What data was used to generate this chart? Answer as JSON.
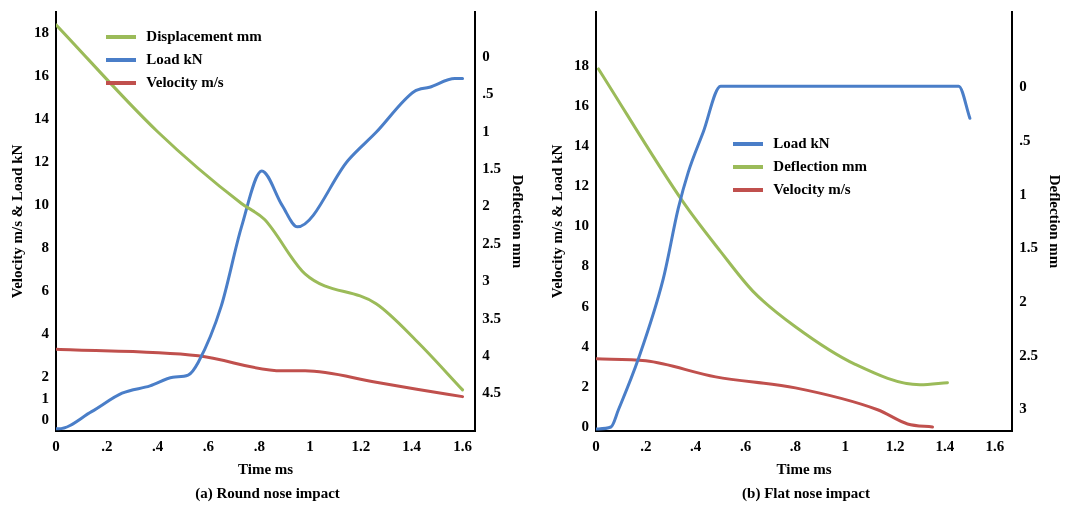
{
  "chart_data": [
    {
      "type": "line",
      "title": "(a) Round nose impact",
      "xlabel": "Time ms",
      "ylabel": "Velocity m/s & Load kN",
      "y2label": "Deflection mm",
      "xlim": [
        0,
        1.65
      ],
      "xticks": [
        0,
        {
          "value": 0.2,
          "label": ".2"
        },
        {
          "value": 0.4,
          "label": ".4"
        },
        {
          "value": 0.6,
          "label": ".6"
        },
        {
          "value": 0.8,
          "label": ".8"
        },
        1,
        1.2,
        1.4,
        1.6
      ],
      "ylim": [
        -0.5,
        19
      ],
      "yticks": [
        0,
        1,
        2,
        4,
        6,
        8,
        10,
        12,
        14,
        16,
        18
      ],
      "y2lim": [
        5,
        -0.6
      ],
      "y2ticks": [
        0,
        {
          "value": 0.5,
          "label": ".5"
        },
        1,
        1.5,
        2,
        2.5,
        3,
        3.5,
        4,
        4.5
      ],
      "legend": "top",
      "marker": "none",
      "grid": false,
      "series": [
        {
          "name": "Displacement mm",
          "color": "#9bbb59",
          "axis": "y2",
          "x": [
            0,
            0.4,
            0.73,
            0.82,
            0.98,
            1.26,
            1.42,
            1.6
          ],
          "values": [
            -0.43,
            1.0,
            1.96,
            2.17,
            2.9,
            3.3,
            3.8,
            4.45
          ]
        },
        {
          "name": "Load kN",
          "color": "#4a7ec8",
          "x": [
            0,
            0.01,
            0.14,
            0.26,
            0.37,
            0.46,
            0.52,
            0.56,
            0.65,
            0.73,
            0.81,
            0.89,
            0.95,
            1.15,
            1.26,
            1.41,
            1.47,
            1.57,
            1.6
          ],
          "values": [
            -0.4,
            -0.4,
            0.4,
            1.26,
            1.6,
            2.0,
            2.1,
            2.7,
            5.3,
            9.0,
            11.6,
            10.0,
            9.0,
            12.1,
            13.4,
            15.3,
            15.5,
            15.9,
            15.9
          ]
        },
        {
          "name": "Velocity m/s",
          "color": "#c0504d",
          "x": [
            0,
            0.56,
            0.89,
            0.98,
            1.26,
            1.42,
            1.6
          ],
          "values": [
            3.3,
            3.0,
            2.3,
            2.3,
            1.77,
            1.44,
            1.1
          ]
        }
      ]
    },
    {
      "type": "line",
      "title": "(b) Flat nose impact",
      "xlabel": "Time ms",
      "ylabel": "Velocity m/s & Load kN",
      "y2label": "Deflection mm",
      "xlim": [
        0,
        1.67
      ],
      "xticks": [
        0,
        {
          "value": 0.2,
          "label": ".2"
        },
        {
          "value": 0.4,
          "label": ".4"
        },
        {
          "value": 0.6,
          "label": ".6"
        },
        {
          "value": 0.8,
          "label": ".8"
        },
        1,
        1.2,
        1.4,
        1.6
      ],
      "ylim": [
        -0.2,
        20.7
      ],
      "yticks": [
        0,
        2,
        4,
        6,
        8,
        10,
        12,
        14,
        16,
        18
      ],
      "y2lim": [
        3.2,
        -0.7
      ],
      "y2ticks": [
        0,
        {
          "value": 0.5,
          "label": ".5"
        },
        1,
        1.5,
        2,
        2.5,
        3
      ],
      "legend": "center right",
      "marker": "none",
      "grid": false,
      "series": [
        {
          "name": "Load kN",
          "color": "#4a7ec8",
          "x": [
            0,
            0.06,
            0.09,
            0.17,
            0.27,
            0.33,
            0.37,
            0.43,
            0.5,
            1.455,
            1.5
          ],
          "values": [
            -0.1,
            0,
            0.86,
            3.4,
            7.4,
            10.9,
            12.7,
            14.7,
            17.0,
            17.0,
            15.4
          ]
        },
        {
          "name": "Deflection mm",
          "color": "#9bbb59",
          "axis": "y2",
          "x": [
            0.01,
            0.35,
            0.5,
            0.63,
            0.8,
            1.04,
            1.3,
            1.41
          ],
          "values": [
            -0.17,
            1.07,
            1.53,
            1.9,
            2.23,
            2.58,
            2.77,
            2.75
          ]
        },
        {
          "name": "Velocity m/s",
          "color": "#c0504d",
          "x": [
            0,
            0.2,
            0.48,
            0.8,
            1.13,
            1.25,
            1.35
          ],
          "values": [
            3.4,
            3.3,
            2.5,
            1.95,
            0.86,
            0.15,
            0
          ]
        }
      ]
    }
  ]
}
